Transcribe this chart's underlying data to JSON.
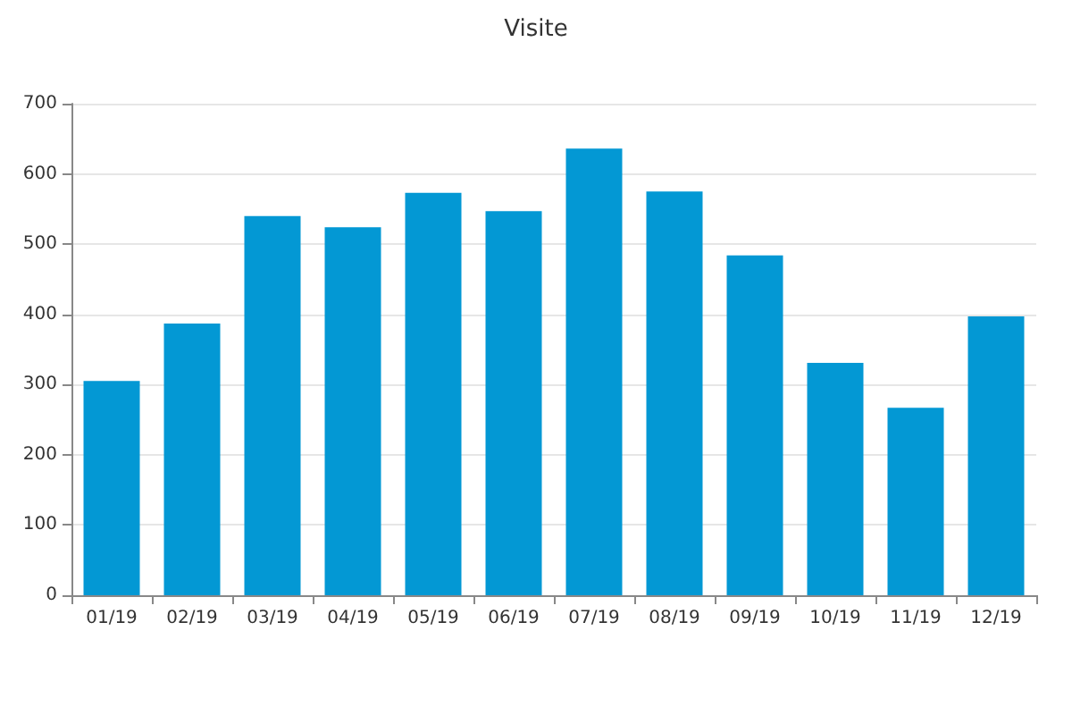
{
  "chart_data": {
    "type": "bar",
    "title": "Visite",
    "categories": [
      "01/19",
      "02/19",
      "03/19",
      "04/19",
      "05/19",
      "06/19",
      "07/19",
      "08/19",
      "09/19",
      "10/19",
      "11/19",
      "12/19"
    ],
    "values": [
      305,
      387,
      540,
      524,
      573,
      547,
      636,
      575,
      484,
      331,
      267,
      397
    ],
    "color": "#0398d4",
    "ylim": [
      0,
      700
    ],
    "yticks": [
      0,
      100,
      200,
      300,
      400,
      500,
      600,
      700
    ],
    "grid": "y"
  }
}
